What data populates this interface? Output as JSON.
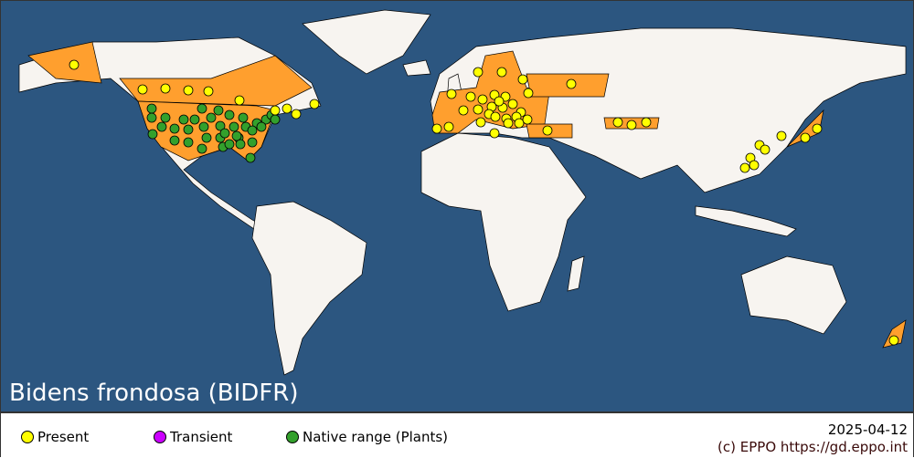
{
  "title": "Bidens frondosa (BIDFR)",
  "legend": [
    {
      "label": "Present",
      "color": "#ffff00"
    },
    {
      "label": "Transient",
      "color": "#cc00ff"
    },
    {
      "label": "Native range (Plants)",
      "color": "#33a02c"
    }
  ],
  "date": "2025-04-12",
  "copyright": "(c) EPPO https://gd.eppo.int",
  "colors": {
    "ocean": "#2c5680",
    "land": "#f7f4f0",
    "recorded_region": "#ff9f2e"
  }
}
